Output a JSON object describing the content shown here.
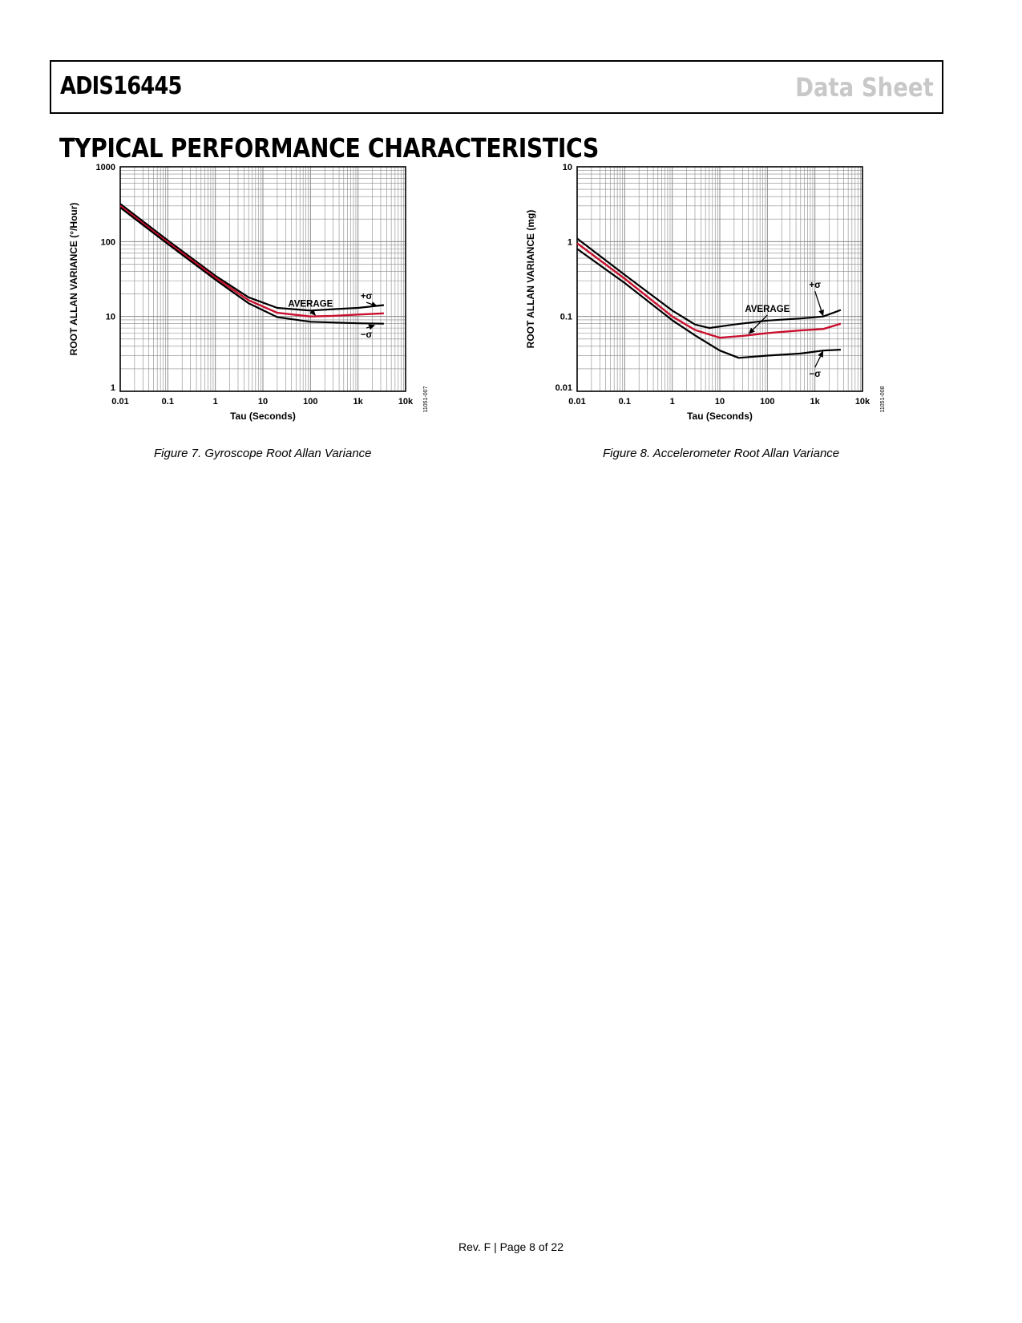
{
  "header": {
    "part_number": "ADIS16445",
    "doc_type": "Data Sheet"
  },
  "section_title": "TYPICAL PERFORMANCE CHARACTERISTICS",
  "footer": {
    "text": "Rev. F | Page 8 of 22"
  },
  "colors": {
    "average": "#c8102e",
    "sigma": "#000000",
    "grid": "#8a8a8a",
    "header_gray": "#c8c8c8"
  },
  "chart_data": [
    {
      "type": "line",
      "figure_id": "11051-007",
      "caption": "Figure 7. Gyroscope Root Allan Variance",
      "xlabel": "Tau (Seconds)",
      "ylabel": "ROOT ALLAN VARIANCE (°/Hour)",
      "x_scale": "log",
      "y_scale": "log",
      "xlim": [
        0.01,
        10000
      ],
      "ylim": [
        1,
        1000
      ],
      "x_ticks": [
        0.01,
        0.1,
        1,
        10,
        100,
        1000,
        10000
      ],
      "x_tick_labels": [
        "0.01",
        "0.1",
        "1",
        "10",
        "100",
        "1k",
        "10k"
      ],
      "y_ticks": [
        1,
        10,
        100,
        1000
      ],
      "y_tick_labels": [
        "1",
        "10",
        "100",
        "1000"
      ],
      "grid": true,
      "annotations": [
        {
          "text": "AVERAGE",
          "label_x": 100,
          "label_y": 13.5,
          "arrow_to_x": 130,
          "arrow_to_y": 10.2
        },
        {
          "text": "+σ",
          "label_x": 1500,
          "label_y": 17,
          "arrow_to_x": 2600,
          "arrow_to_y": 13.6
        },
        {
          "text": "−σ",
          "label_x": 1500,
          "label_y": 5.2,
          "arrow_to_x": 2300,
          "arrow_to_y": 7.7
        }
      ],
      "series": [
        {
          "name": "+σ",
          "x": [
            0.01,
            0.1,
            1,
            5,
            20,
            100,
            300,
            1000,
            3500
          ],
          "y": [
            320,
            104,
            35,
            18,
            13,
            12,
            12.5,
            13,
            14.2
          ]
        },
        {
          "name": "AVERAGE",
          "x": [
            0.01,
            0.1,
            1,
            5,
            20,
            100,
            300,
            1000,
            3500
          ],
          "y": [
            300,
            98,
            33,
            16.5,
            11.2,
            10,
            10.2,
            10.6,
            11
          ]
        },
        {
          "name": "−σ",
          "x": [
            0.01,
            0.1,
            1,
            5,
            20,
            100,
            300,
            1000,
            3500
          ],
          "y": [
            285,
            93,
            31,
            15,
            9.8,
            8.5,
            8.3,
            8.1,
            8
          ]
        }
      ]
    },
    {
      "type": "line",
      "figure_id": "11051-008",
      "caption": "Figure 8. Accelerometer Root Allan Variance",
      "xlabel": "Tau (Seconds)",
      "ylabel": "ROOT ALLAN VARIANCE (mg)",
      "x_scale": "log",
      "y_scale": "log",
      "xlim": [
        0.01,
        10000
      ],
      "ylim": [
        0.01,
        10
      ],
      "x_ticks": [
        0.01,
        0.1,
        1,
        10,
        100,
        1000,
        10000
      ],
      "x_tick_labels": [
        "0.01",
        "0.1",
        "1",
        "10",
        "100",
        "1k",
        "10k"
      ],
      "y_ticks": [
        0.01,
        0.1,
        1,
        10
      ],
      "y_tick_labels": [
        "0.01",
        "0.1",
        "1",
        "10"
      ],
      "grid": true,
      "annotations": [
        {
          "text": "AVERAGE",
          "label_x": 100,
          "label_y": 0.115,
          "arrow_to_x": 40,
          "arrow_to_y": 0.058
        },
        {
          "text": "+σ",
          "label_x": 1000,
          "label_y": 0.24,
          "arrow_to_x": 1500,
          "arrow_to_y": 0.1
        },
        {
          "text": "−σ",
          "label_x": 1000,
          "label_y": 0.0155,
          "arrow_to_x": 1500,
          "arrow_to_y": 0.035
        }
      ],
      "series": [
        {
          "name": "+σ",
          "x": [
            0.01,
            0.1,
            1,
            3,
            6,
            20,
            100,
            500,
            1500,
            3500
          ],
          "y": [
            1.1,
            0.36,
            0.12,
            0.078,
            0.07,
            0.078,
            0.088,
            0.094,
            0.1,
            0.122
          ]
        },
        {
          "name": "AVERAGE",
          "x": [
            0.01,
            0.1,
            1,
            3,
            10,
            30,
            100,
            500,
            1500,
            3500
          ],
          "y": [
            0.95,
            0.32,
            0.1,
            0.066,
            0.052,
            0.055,
            0.06,
            0.065,
            0.068,
            0.08
          ]
        },
        {
          "name": "−σ",
          "x": [
            0.01,
            0.1,
            1,
            3,
            10,
            25,
            100,
            500,
            1500,
            3500
          ],
          "y": [
            0.8,
            0.28,
            0.089,
            0.056,
            0.035,
            0.028,
            0.03,
            0.032,
            0.035,
            0.036
          ]
        }
      ]
    }
  ]
}
